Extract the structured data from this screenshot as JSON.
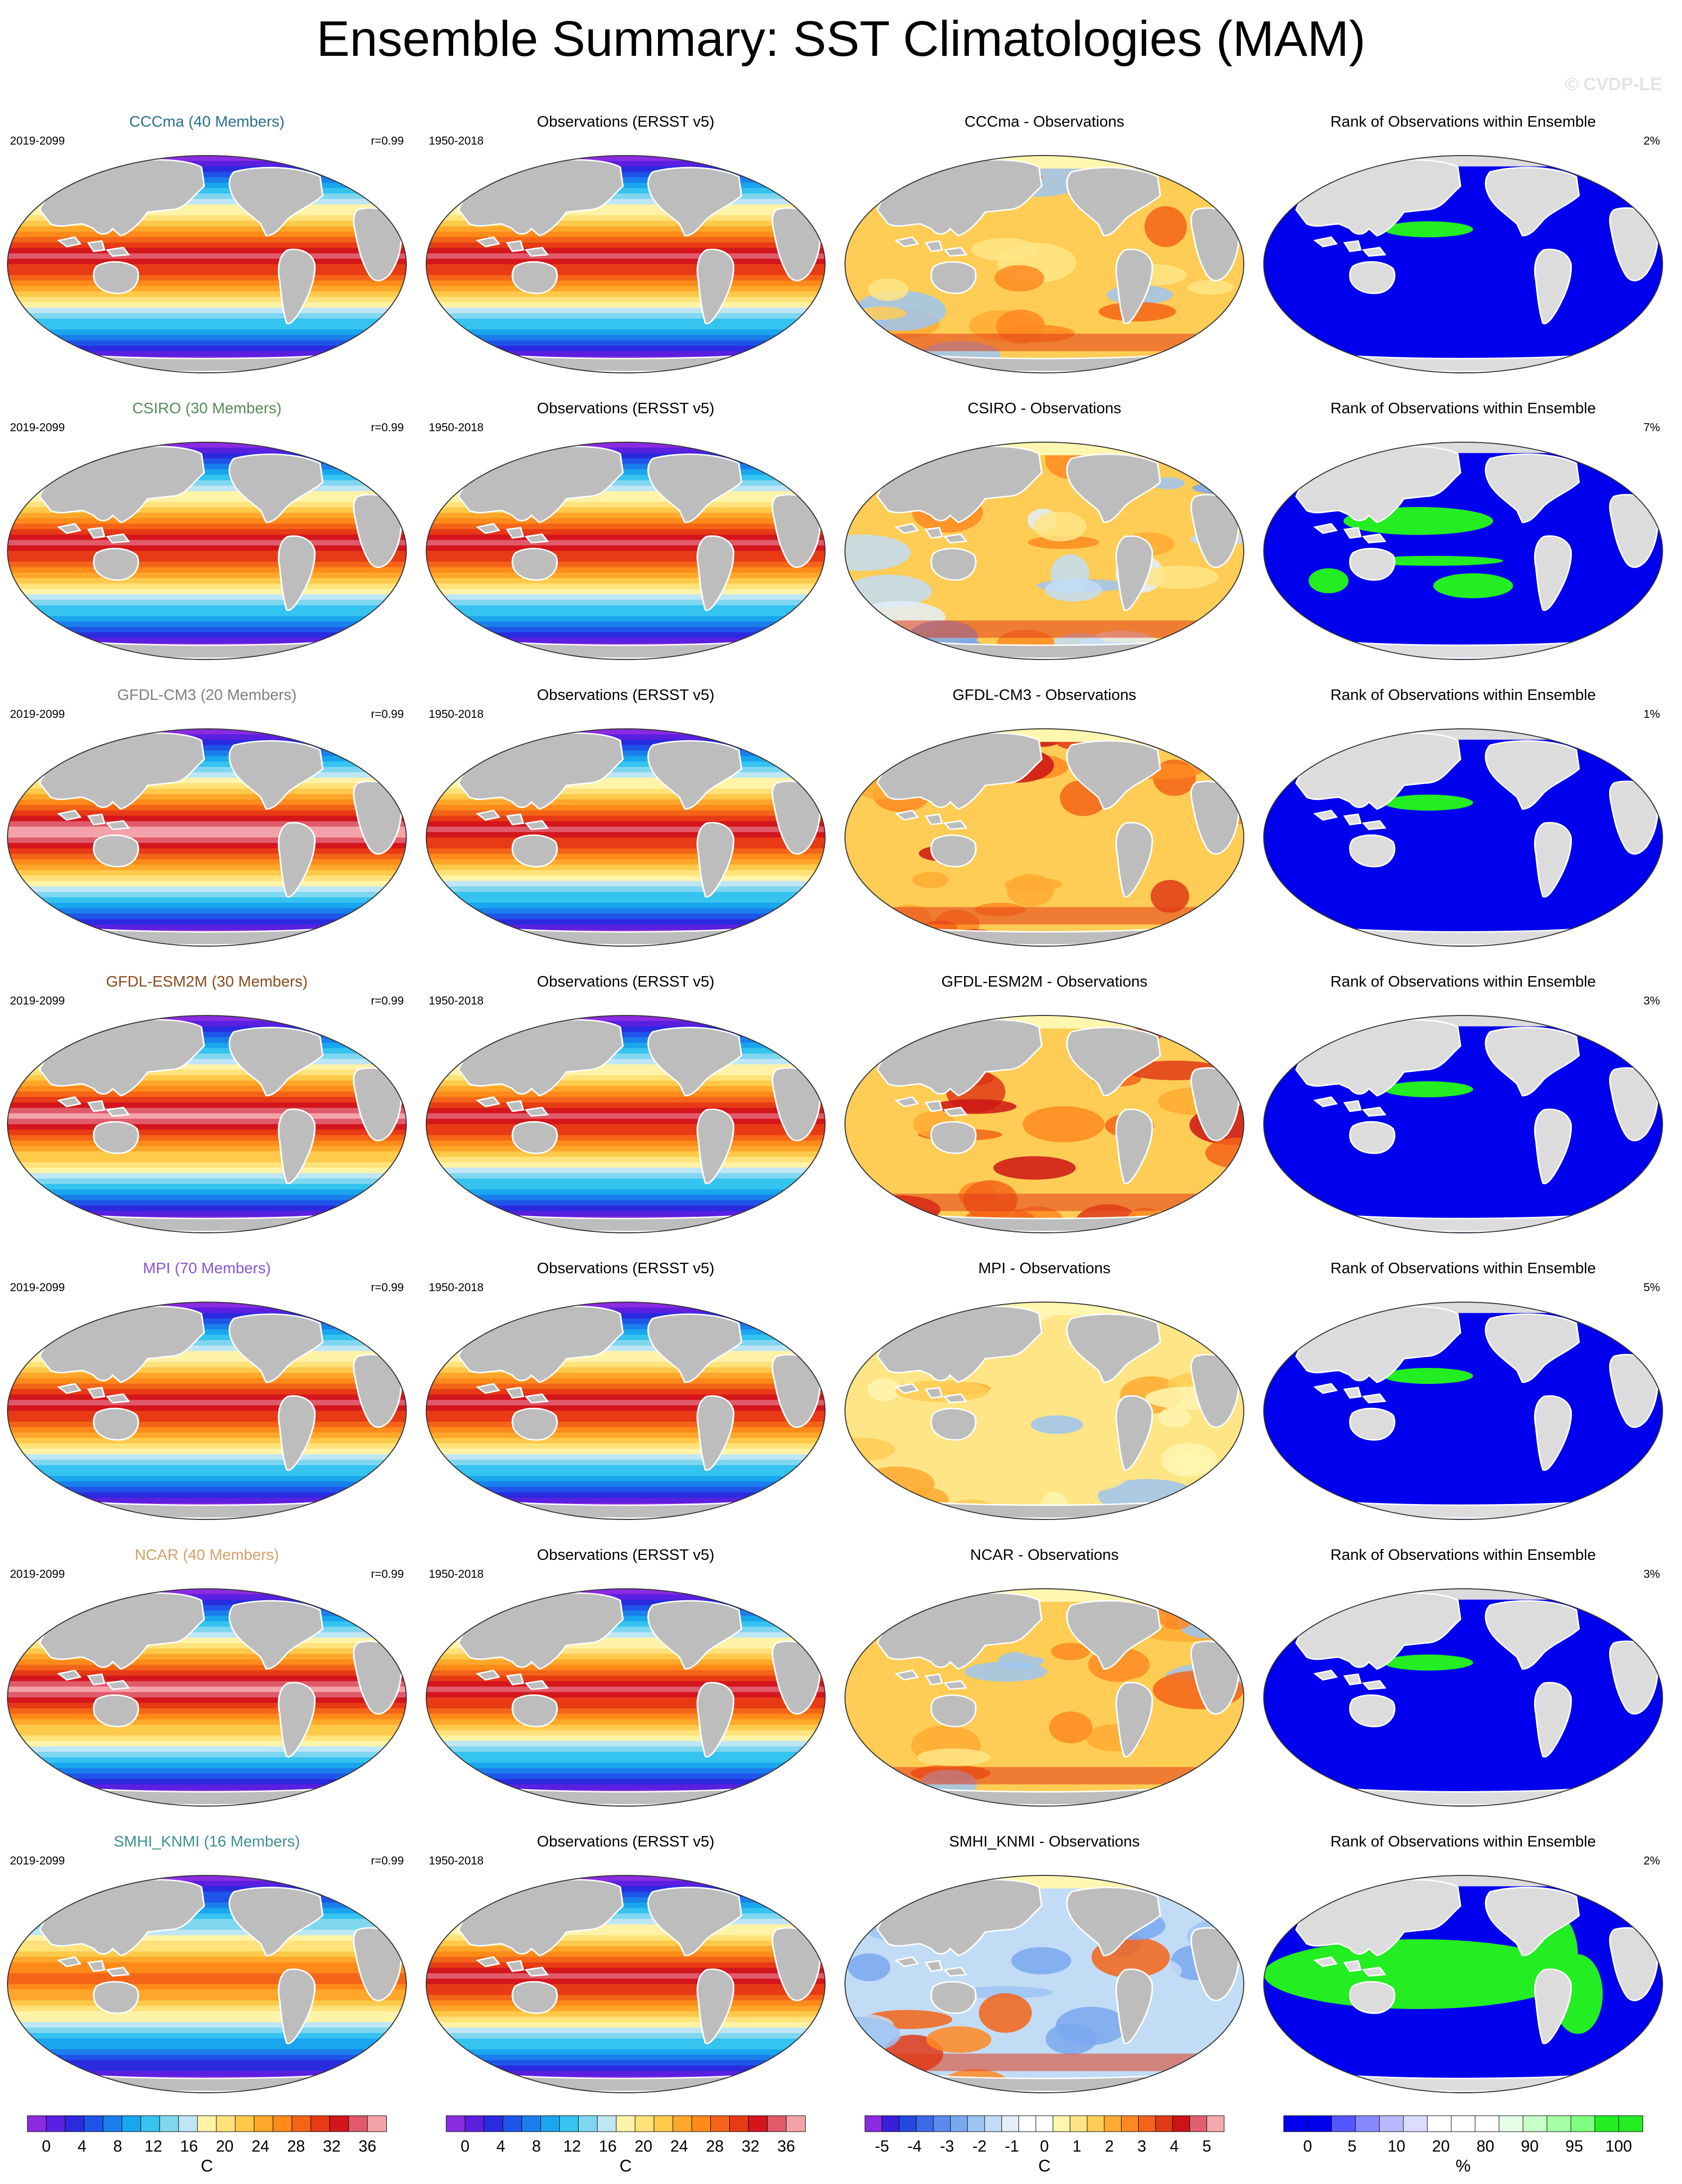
{
  "title": "Ensemble Summary: SST Climatologies (MAM)",
  "watermark": "© CVDP-LE",
  "colors": {
    "land_gray": "#bdbdbd",
    "land_light": "#dcdcdc",
    "rank_blue": "#0000ee",
    "rank_green": "#22ee22"
  },
  "rows": [
    {
      "model": "CCCma (40 Members)",
      "model_color": "#2b6f8f",
      "model_years": "2019-2099",
      "corr": "r=0.99",
      "obs_title": "Observations (ERSST v5)",
      "obs_years": "1950-2018",
      "diff_title": "CCCma - Observations",
      "rank_title": "Rank of Observations within Ensemble",
      "rank_pct": "2%",
      "warm": 1.0,
      "diff_mode": "warm",
      "rank_mode": "blue"
    },
    {
      "model": "CSIRO (30 Members)",
      "model_color": "#5a8a5a",
      "model_years": "2019-2099",
      "corr": "r=0.99",
      "obs_title": "Observations (ERSST v5)",
      "obs_years": "1950-2018",
      "diff_title": "CSIRO - Observations",
      "rank_title": "Rank of Observations within Ensemble",
      "rank_pct": "7%",
      "warm": 1.0,
      "diff_mode": "mixed",
      "rank_mode": "mixed"
    },
    {
      "model": "GFDL-CM3 (20 Members)",
      "model_color": "#7f7f7f",
      "model_years": "2019-2099",
      "corr": "r=0.99",
      "obs_title": "Observations (ERSST v5)",
      "obs_years": "1950-2018",
      "diff_title": "GFDL-CM3 - Observations",
      "rank_title": "Rank of Observations within Ensemble",
      "rank_pct": "1%",
      "warm": 1.1,
      "diff_mode": "hot",
      "rank_mode": "blue"
    },
    {
      "model": "GFDL-ESM2M (30 Members)",
      "model_color": "#8b4a1e",
      "model_years": "2019-2099",
      "corr": "r=0.99",
      "obs_title": "Observations (ERSST v5)",
      "obs_years": "1950-2018",
      "diff_title": "GFDL-ESM2M - Observations",
      "rank_title": "Rank of Observations within Ensemble",
      "rank_pct": "3%",
      "warm": 1.05,
      "diff_mode": "hot",
      "rank_mode": "blue"
    },
    {
      "model": "MPI (70 Members)",
      "model_color": "#8a55d8",
      "model_years": "2019-2099",
      "corr": "r=0.99",
      "obs_title": "Observations (ERSST v5)",
      "obs_years": "1950-2018",
      "diff_title": "MPI - Observations",
      "rank_title": "Rank of Observations within Ensemble",
      "rank_pct": "5%",
      "warm": 1.0,
      "diff_mode": "mild",
      "rank_mode": "blue"
    },
    {
      "model": "NCAR (40 Members)",
      "model_color": "#d4a06a",
      "model_years": "2019-2099",
      "corr": "r=0.99",
      "obs_title": "Observations (ERSST v5)",
      "obs_years": "1950-2018",
      "diff_title": "NCAR - Observations",
      "rank_title": "Rank of Observations within Ensemble",
      "rank_pct": "3%",
      "warm": 1.05,
      "diff_mode": "warm",
      "rank_mode": "blue"
    },
    {
      "model": "SMHI_KNMI (16 Members)",
      "model_color": "#3f8f8f",
      "model_years": "2019-2099",
      "corr": "r=0.99",
      "obs_title": "Observations (ERSST v5)",
      "obs_years": "1950-2018",
      "diff_title": "SMHI_KNMI - Observations",
      "rank_title": "Rank of Observations within Ensemble",
      "rank_pct": "2%",
      "warm": 0.85,
      "diff_mode": "cold",
      "rank_mode": "green"
    }
  ],
  "colorbars": [
    {
      "colors": [
        "#8a2be2",
        "#5b1fe0",
        "#2a2adf",
        "#1f54e8",
        "#1a7fec",
        "#19a6ee",
        "#35c3f0",
        "#7fd7ef",
        "#bfe6f5",
        "#fff3a8",
        "#ffe27a",
        "#ffc94a",
        "#ffa72a",
        "#ff8a1a",
        "#f46418",
        "#e83a15",
        "#d4161c",
        "#e05a6a",
        "#f4a2aa"
      ],
      "labels": [
        "0",
        "4",
        "8",
        "12",
        "16",
        "20",
        "24",
        "28",
        "32",
        "36"
      ],
      "unit": "C"
    },
    {
      "colors": [
        "#8a2be2",
        "#5b1fe0",
        "#2a2adf",
        "#1f54e8",
        "#1a7fec",
        "#19a6ee",
        "#35c3f0",
        "#7fd7ef",
        "#bfe6f5",
        "#fff3a8",
        "#ffe27a",
        "#ffc94a",
        "#ffa72a",
        "#ff8a1a",
        "#f46418",
        "#e83a15",
        "#d4161c",
        "#e05a6a",
        "#f4a2aa"
      ],
      "labels": [
        "0",
        "4",
        "8",
        "12",
        "16",
        "20",
        "24",
        "28",
        "32",
        "36"
      ],
      "unit": "C"
    },
    {
      "colors": [
        "#8a2be2",
        "#3a1fd8",
        "#2648e0",
        "#3a6ae6",
        "#5a8aec",
        "#7aa8ee",
        "#9ec4f2",
        "#c2dcf6",
        "#e3eef9",
        "#ffffff",
        "#ffffff",
        "#fff6b0",
        "#ffe585",
        "#ffcc55",
        "#ffaa33",
        "#ff8a22",
        "#f46418",
        "#e03a18",
        "#cc1414",
        "#e06070",
        "#f4a8b0"
      ],
      "labels": [
        "-5",
        "-4",
        "-3",
        "-2",
        "-1",
        "0",
        "1",
        "2",
        "3",
        "4",
        "5"
      ],
      "unit": "C"
    },
    {
      "colors": [
        "#0000ee",
        "#0000ee",
        "#5555ff",
        "#8888ff",
        "#b8b8ff",
        "#dcdcff",
        "#ffffff",
        "#ffffff",
        "#ffffff",
        "#e6ffe6",
        "#c8ffc8",
        "#a6ffa6",
        "#7fff7f",
        "#22ee22",
        "#22ee22"
      ],
      "labels": [
        "0",
        "5",
        "10",
        "20",
        "80",
        "90",
        "95",
        "100"
      ],
      "unit": "%"
    }
  ]
}
